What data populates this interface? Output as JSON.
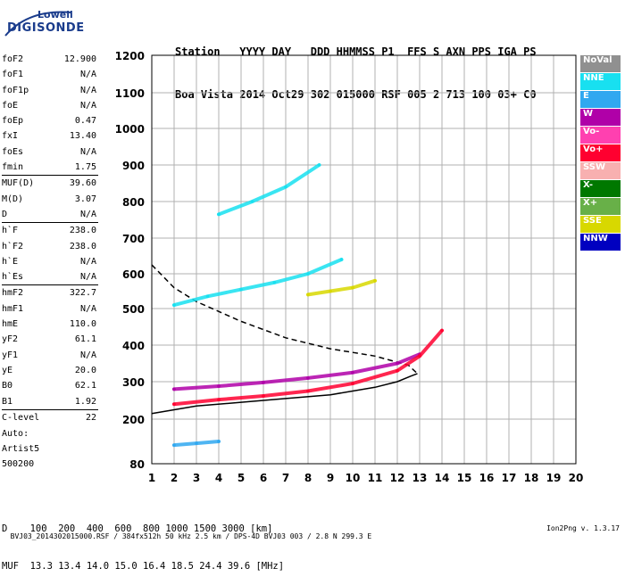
{
  "logo": {
    "line1": "Lowell",
    "line2": "DIGISONDE"
  },
  "header": {
    "row1": "Station   YYYY DAY   DDD HHMMSS P1  FFS S AXN PPS IGA PS",
    "row2": "Boa Vista 2014 Oct29 302 015000 RSF 005 2 713 100 03+ C0"
  },
  "params": {
    "group1": [
      {
        "k": "foF2",
        "v": "12.900"
      },
      {
        "k": "foF1",
        "v": "N/A"
      },
      {
        "k": "foF1p",
        "v": "N/A"
      },
      {
        "k": "foE",
        "v": "N/A"
      },
      {
        "k": "foEp",
        "v": "0.47"
      },
      {
        "k": "fxI",
        "v": "13.40"
      },
      {
        "k": "foEs",
        "v": "N/A"
      },
      {
        "k": "fmin",
        "v": "1.75"
      }
    ],
    "group2": [
      {
        "k": "MUF(D)",
        "v": "39.60"
      },
      {
        "k": "M(D)",
        "v": "3.07"
      },
      {
        "k": "D",
        "v": "N/A"
      }
    ],
    "group3": [
      {
        "k": "h`F",
        "v": "238.0"
      },
      {
        "k": "h`F2",
        "v": "238.0"
      },
      {
        "k": "h`E",
        "v": "N/A"
      },
      {
        "k": "h`Es",
        "v": "N/A"
      }
    ],
    "group4": [
      {
        "k": "hmF2",
        "v": "322.7"
      },
      {
        "k": "hmF1",
        "v": "N/A"
      },
      {
        "k": "hmE",
        "v": "110.0"
      },
      {
        "k": "yF2",
        "v": "61.1"
      },
      {
        "k": "yF1",
        "v": "N/A"
      },
      {
        "k": "yE",
        "v": "20.0"
      },
      {
        "k": "B0",
        "v": "62.1"
      },
      {
        "k": "B1",
        "v": "1.92"
      }
    ],
    "group5": [
      {
        "k": "C-level",
        "v": "22"
      }
    ]
  },
  "auto": {
    "line1": "Auto:",
    "line2": "Artist5",
    "line3": "500200"
  },
  "footer": {
    "row_d": "D    100  200  400  600  800 1000 1500 3000 [km]",
    "row_muf": "MUF  13.3 13.4 14.0 15.0 16.4 18.5 24.4 39.6 [MHz]"
  },
  "bottom": {
    "info": "BVJ03_2014302015000.RSF / 384fx512h 50 kHz 2.5 km / DPS-4D BVJ03 003 / 2.8 N 299.3 E",
    "version": "Ion2Png v. 1.3.17"
  },
  "legend": [
    {
      "label": "NoVal",
      "color": "#909090"
    },
    {
      "label": "NNE",
      "color": "#18e0f0"
    },
    {
      "label": "E",
      "color": "#30a8f0"
    },
    {
      "label": "W",
      "color": "#b000a8"
    },
    {
      "label": "Vo-",
      "color": "#ff40b0"
    },
    {
      "label": "Vo+",
      "color": "#ff0030"
    },
    {
      "label": "SSW",
      "color": "#f8b0b0"
    },
    {
      "label": "X-",
      "color": "#007800"
    },
    {
      "label": "X+",
      "color": "#68b048"
    },
    {
      "label": "SSE",
      "color": "#d8d800"
    },
    {
      "label": "NNW",
      "color": "#0000c0"
    }
  ],
  "chart_data": {
    "type": "scatter",
    "title": "",
    "xlabel": "",
    "ylabel": "",
    "xlim": [
      1,
      20
    ],
    "ylim": [
      80,
      1200
    ],
    "x_ticks": [
      "1",
      "2",
      "3",
      "4",
      "5",
      "6",
      "7",
      "8",
      "9",
      "10",
      "11",
      "12",
      "13",
      "14",
      "15",
      "16",
      "17",
      "18",
      "19",
      "20"
    ],
    "y_ticks": [
      "80",
      "200",
      "300",
      "400",
      "500",
      "600",
      "700",
      "800",
      "900",
      "1000",
      "1100",
      "1200"
    ],
    "y_breaks_ms": [
      80,
      200,
      300,
      400,
      500,
      600,
      700,
      800,
      900,
      1000,
      1100,
      1200
    ],
    "grid": true,
    "legend_position": "right",
    "traces": [
      {
        "name": "W",
        "color": "#b000a8",
        "x": [
          2.0,
          4.0,
          6.0,
          8.0,
          10.0,
          12.0,
          13.0
        ],
        "y": [
          280,
          288,
          298,
          310,
          325,
          350,
          375
        ]
      },
      {
        "name": "Vo+",
        "color": "#ff0030",
        "x": [
          2.0,
          4.0,
          6.0,
          8.0,
          10.0,
          12.0,
          13.0,
          14.0
        ],
        "y": [
          240,
          252,
          262,
          275,
          295,
          330,
          370,
          440
        ]
      },
      {
        "name": "NNE",
        "color": "#18e0f0",
        "x": [
          2.0,
          3.5,
          5.0,
          6.5,
          8.0,
          9.5
        ],
        "y": [
          510,
          535,
          555,
          575,
          600,
          640
        ]
      },
      {
        "name": "NNE",
        "color": "#18e0f0",
        "x": [
          4.0,
          5.5,
          7.0,
          8.5
        ],
        "y": [
          765,
          800,
          840,
          900
        ]
      },
      {
        "name": "E",
        "color": "#30a8f0",
        "x": [
          2.0,
          3.0,
          4.0
        ],
        "y": [
          130,
          135,
          140
        ]
      },
      {
        "name": "SSE",
        "color": "#d8d800",
        "x": [
          8.0,
          9.0,
          10.0,
          11.0
        ],
        "y": [
          540,
          550,
          560,
          580
        ]
      }
    ],
    "curves": [
      {
        "name": "profile-solid",
        "color": "#000000",
        "x": [
          1.0,
          3.0,
          5.0,
          7.0,
          9.0,
          11.0,
          12.0,
          12.6,
          12.9
        ],
        "y": [
          215,
          235,
          245,
          255,
          265,
          285,
          300,
          315,
          322
        ]
      },
      {
        "name": "profile-dashed",
        "color": "#000000",
        "x": [
          1.0,
          2.0,
          3.0,
          5.0,
          7.0,
          9.0,
          11.0,
          12.5,
          12.9
        ],
        "y": [
          625,
          560,
          520,
          465,
          420,
          390,
          370,
          345,
          322
        ]
      }
    ]
  }
}
